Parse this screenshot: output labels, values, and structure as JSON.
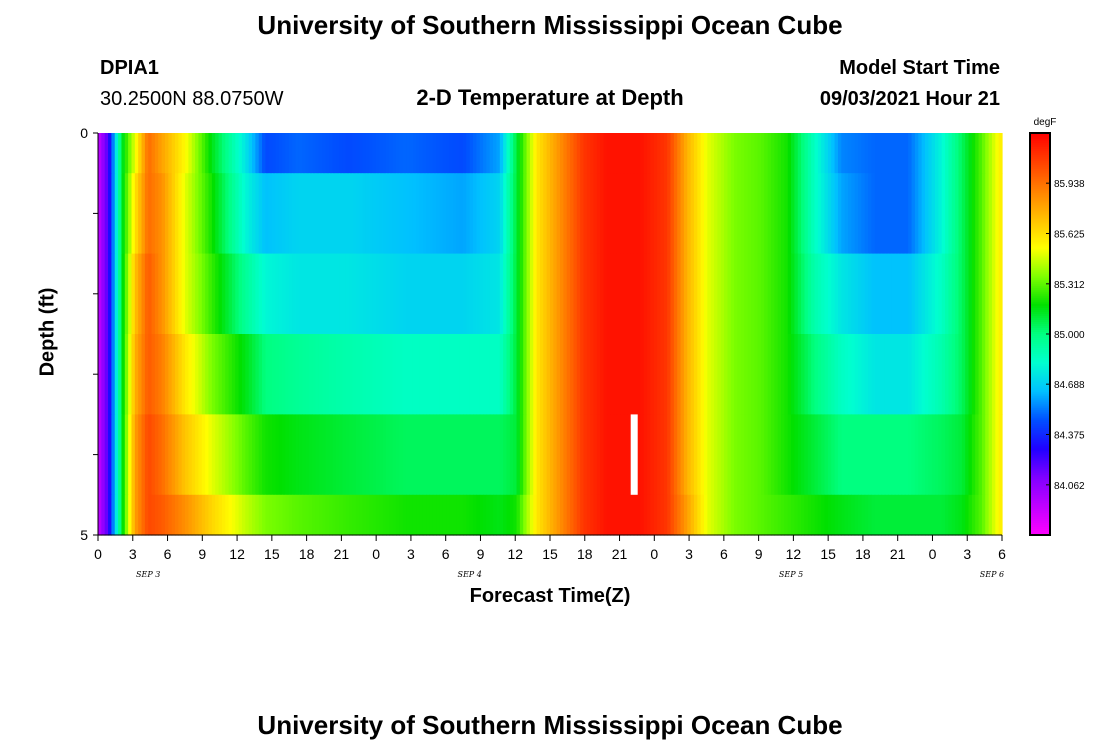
{
  "header": {
    "title": "University of Southern Mississippi Ocean Cube",
    "station_id": "DPIA1",
    "station_coords": "30.2500N  88.0750W",
    "chart_title": "2-D Temperature at Depth",
    "model_label": "Model Start Time",
    "model_time": "09/03/2021 Hour 21"
  },
  "footer": {
    "title": "University of Southern Mississippi Ocean Cube"
  },
  "chart_data": {
    "type": "heatmap",
    "title": "2-D Temperature at Depth",
    "xlabel": "Forecast Time(Z)",
    "ylabel": "Depth (ft)",
    "x_tick_labels": [
      "0",
      "3",
      "6",
      "9",
      "12",
      "15",
      "18",
      "21",
      "0",
      "3",
      "6",
      "9",
      "12",
      "15",
      "18",
      "21",
      "0",
      "3",
      "6",
      "9",
      "12",
      "15",
      "18",
      "21",
      "0",
      "3",
      "6"
    ],
    "date_labels": [
      "SEP 3",
      "SEP 4",
      "SEP 5",
      "SEP 6"
    ],
    "date_label_hours": [
      15,
      111,
      207,
      267
    ],
    "x_range_hours": [
      0,
      270
    ],
    "x_step_hours": 3,
    "y_range_ft": [
      0,
      5
    ],
    "y_tick_labels": [
      "0",
      "5"
    ],
    "y_tick_values": [
      0,
      1,
      2,
      3,
      4,
      5
    ],
    "depth_levels_ft": [
      0.25,
      0.75,
      1.75,
      2.75,
      3.75,
      4.75
    ],
    "colorbar": {
      "unit": "degF",
      "min": 83.75,
      "max": 86.25,
      "labels": [
        "85.938",
        "85.625",
        "85.312",
        "85.000",
        "84.688",
        "84.375",
        "84.062"
      ],
      "colors": [
        "#ff00ff",
        "#c000ff",
        "#8000ff",
        "#2000ff",
        "#0050ff",
        "#00c0ff",
        "#00ffd0",
        "#00ff80",
        "#00e000",
        "#80ff00",
        "#ffff00",
        "#ffc000",
        "#ff8000",
        "#ff4000",
        "#ff0000"
      ]
    },
    "current_time_marker_hour": 160,
    "current_time_marker_depth_ft": [
      3.5,
      4.5
    ],
    "keyframes_hours": [
      0,
      3,
      7,
      11,
      15,
      19,
      26,
      34,
      44,
      50,
      60,
      75,
      92,
      109,
      120,
      125,
      131,
      138,
      145,
      152,
      162,
      170,
      176,
      182,
      190,
      198,
      206,
      214,
      222,
      232,
      242,
      252,
      258,
      264,
      270
    ],
    "values_degF": [
      [
        83.9,
        84.2,
        85.1,
        85.5,
        85.95,
        85.8,
        85.55,
        85.15,
        84.75,
        84.45,
        84.5,
        84.45,
        84.5,
        84.45,
        84.6,
        85.1,
        85.6,
        85.85,
        86.1,
        86.2,
        86.2,
        86.1,
        85.75,
        85.5,
        85.35,
        85.3,
        85.2,
        84.85,
        84.55,
        84.5,
        84.5,
        84.8,
        85.05,
        85.3,
        85.6
      ],
      [
        83.9,
        84.2,
        85.1,
        85.6,
        85.95,
        85.85,
        85.5,
        85.2,
        84.8,
        84.65,
        84.7,
        84.7,
        84.65,
        84.6,
        84.7,
        85.1,
        85.6,
        85.85,
        86.1,
        86.2,
        86.2,
        86.1,
        85.75,
        85.5,
        85.35,
        85.3,
        85.2,
        84.85,
        84.6,
        84.5,
        84.5,
        84.8,
        85.05,
        85.3,
        85.6
      ],
      [
        83.9,
        84.2,
        85.1,
        85.7,
        86.0,
        85.85,
        85.5,
        85.25,
        84.95,
        84.8,
        84.75,
        84.75,
        84.7,
        84.7,
        84.75,
        85.1,
        85.6,
        85.85,
        86.1,
        86.2,
        86.2,
        86.1,
        85.75,
        85.5,
        85.35,
        85.3,
        85.2,
        84.9,
        84.75,
        84.65,
        84.65,
        84.85,
        85.05,
        85.3,
        85.6
      ],
      [
        83.9,
        84.2,
        85.1,
        85.75,
        86.0,
        85.9,
        85.6,
        85.35,
        85.15,
        85.0,
        84.95,
        84.9,
        84.85,
        84.85,
        84.85,
        85.1,
        85.6,
        85.85,
        86.1,
        86.2,
        86.2,
        86.1,
        85.75,
        85.5,
        85.35,
        85.3,
        85.2,
        85.0,
        84.85,
        84.75,
        84.75,
        84.9,
        85.05,
        85.3,
        85.6
      ],
      [
        83.9,
        84.2,
        85.1,
        85.8,
        86.05,
        85.95,
        85.7,
        85.5,
        85.3,
        85.2,
        85.15,
        85.1,
        85.05,
        85.05,
        85.05,
        85.1,
        85.6,
        85.85,
        86.1,
        86.2,
        86.2,
        86.1,
        85.75,
        85.5,
        85.35,
        85.3,
        85.2,
        85.1,
        85.0,
        85.0,
        85.0,
        85.05,
        85.1,
        85.3,
        85.6
      ],
      [
        83.9,
        84.2,
        85.1,
        85.8,
        86.05,
        86.0,
        85.85,
        85.65,
        85.45,
        85.35,
        85.3,
        85.25,
        85.2,
        85.2,
        85.15,
        85.2,
        85.6,
        85.85,
        86.1,
        86.2,
        86.2,
        86.1,
        85.8,
        85.5,
        85.35,
        85.3,
        85.25,
        85.2,
        85.15,
        85.1,
        85.1,
        85.1,
        85.15,
        85.3,
        85.6
      ]
    ]
  }
}
